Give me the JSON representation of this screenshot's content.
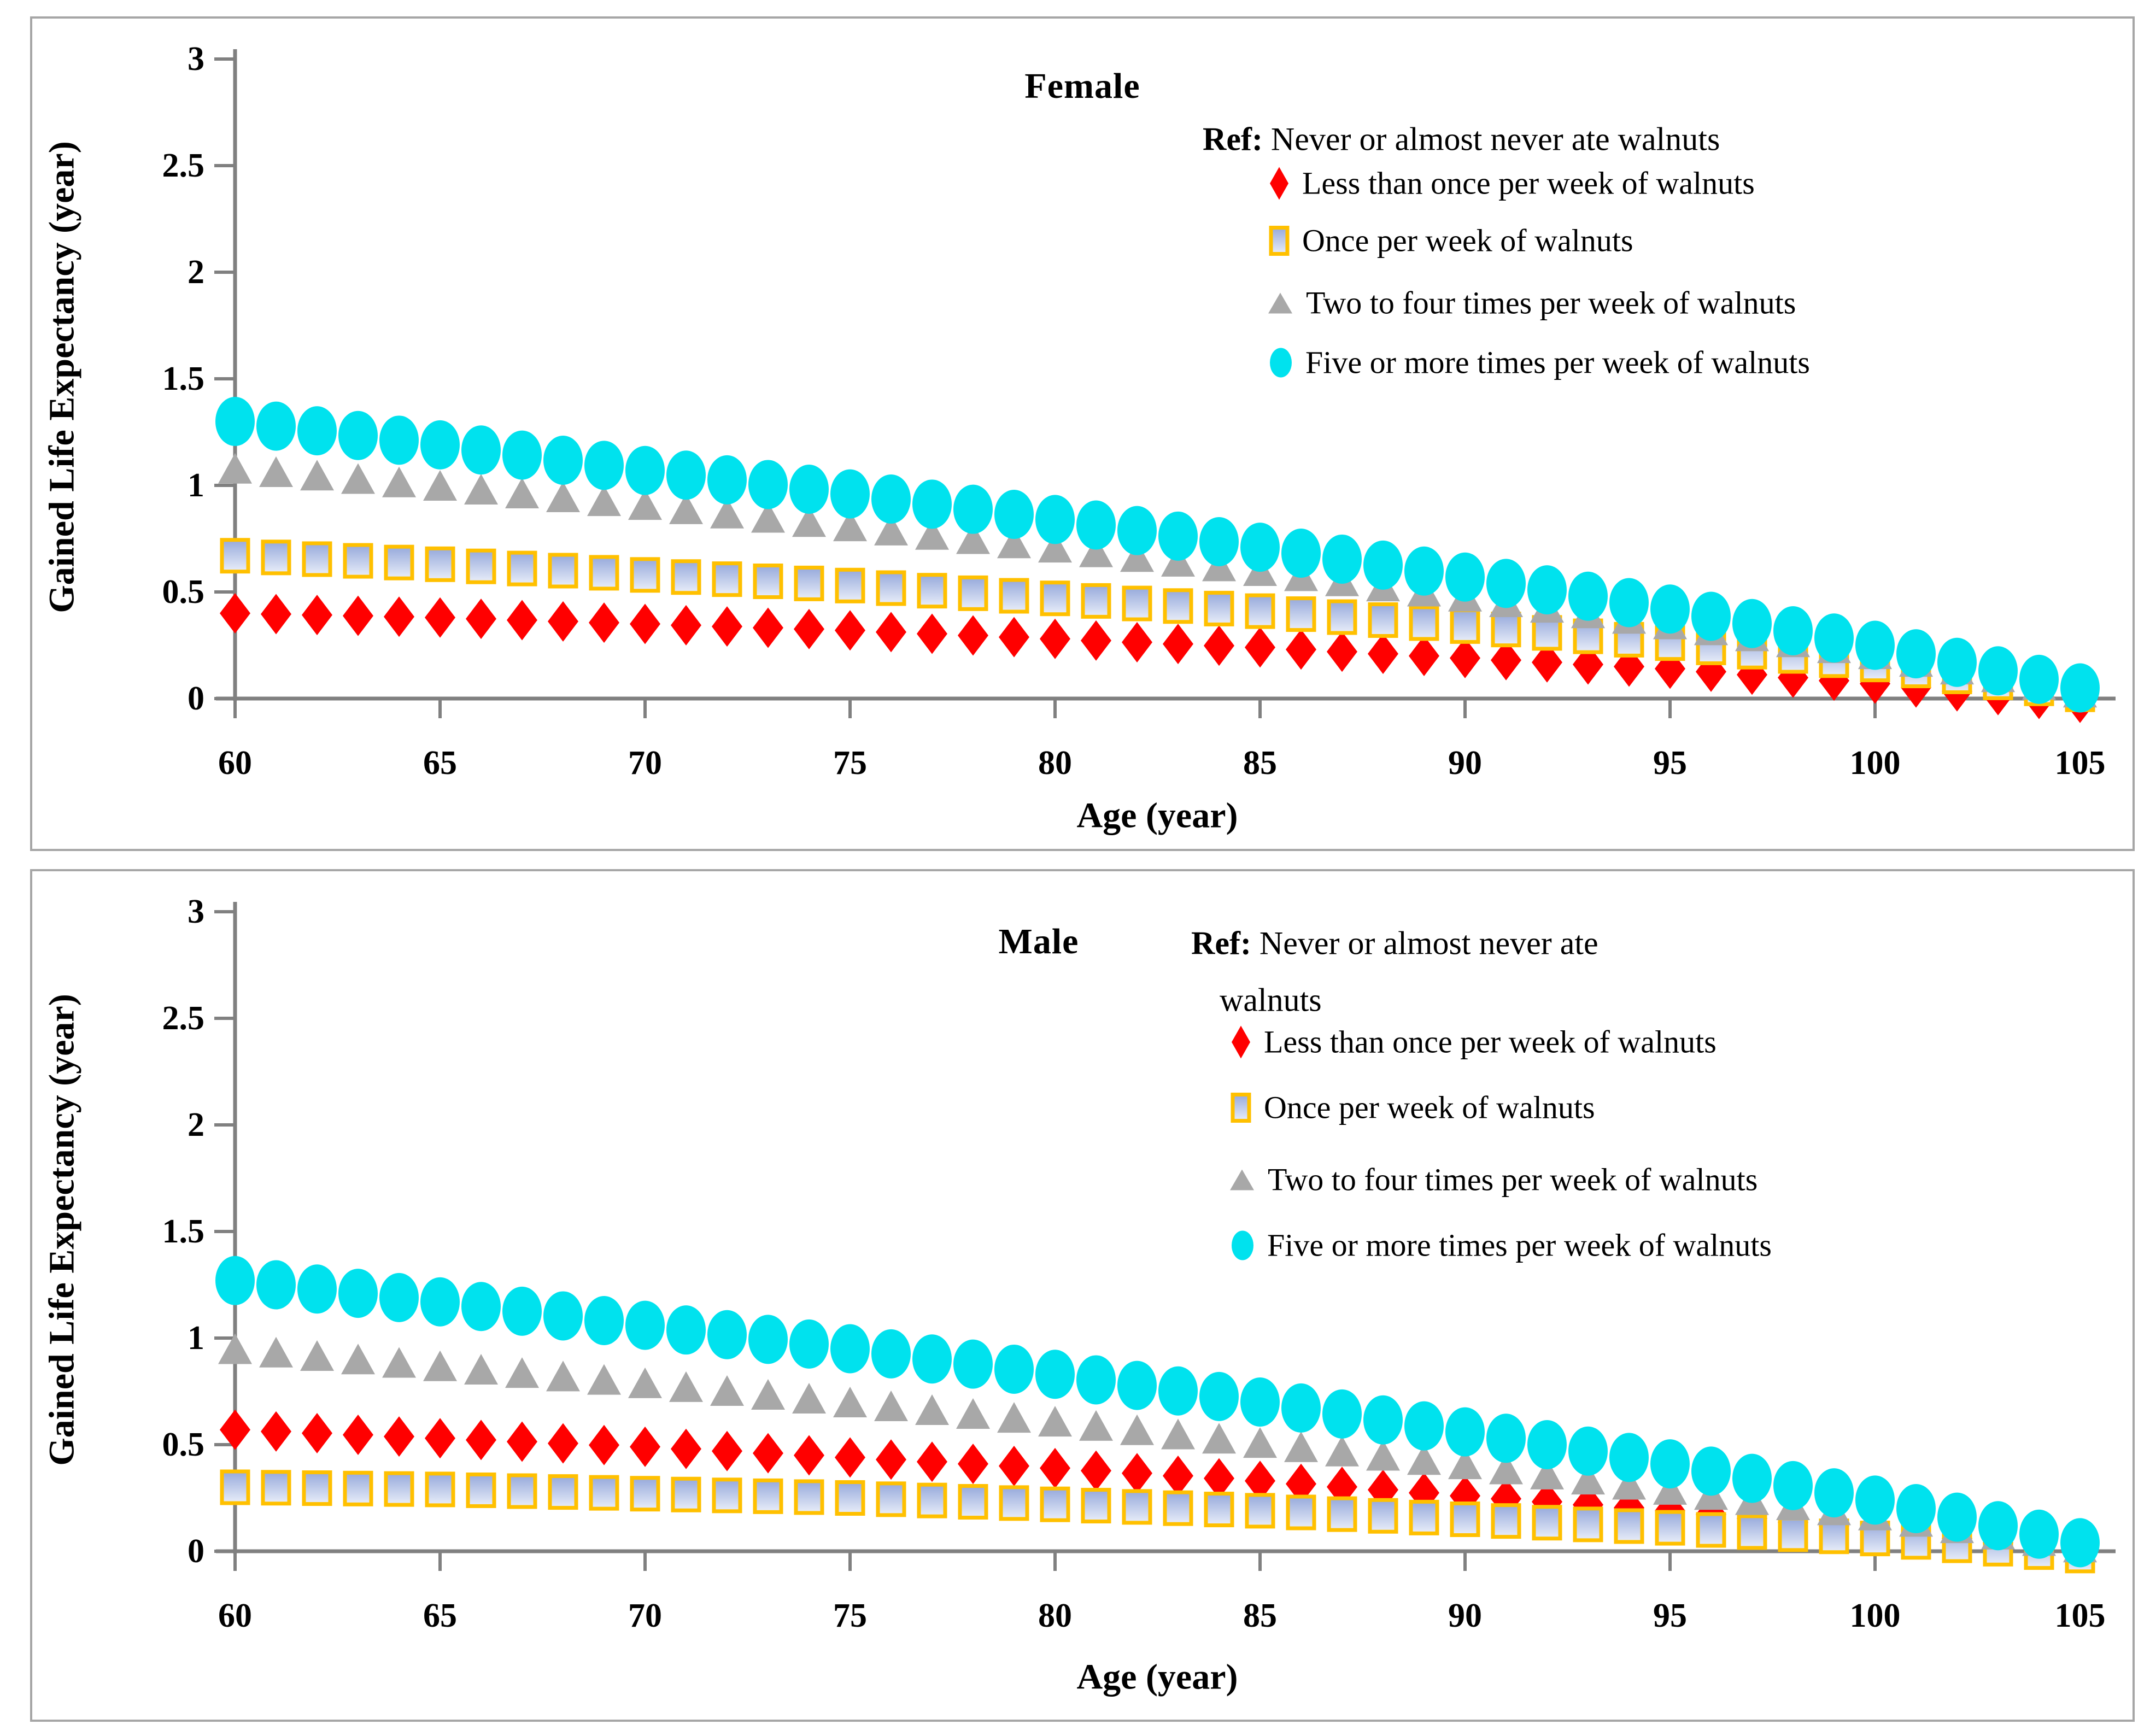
{
  "chart_data": [
    {
      "type": "scatter",
      "panel": "female",
      "title": "Female",
      "xlabel": "Age (year)",
      "ylabel": "Gained Life Expectancy (year)",
      "xlim": [
        60,
        105
      ],
      "ylim": [
        0,
        3
      ],
      "grid": false,
      "x_tick_values": [
        60,
        65,
        70,
        75,
        80,
        85,
        90,
        95,
        100,
        105
      ],
      "x_tick_labels": [
        "60",
        "65",
        "70",
        "75",
        "80",
        "85",
        "90",
        "95",
        "100",
        "105"
      ],
      "y_tick_values": [
        0,
        0.5,
        1,
        1.5,
        2,
        2.5,
        3
      ],
      "y_tick_labels": [
        "0",
        "0.5",
        "1",
        "1.5",
        "2",
        "2.5",
        "3"
      ],
      "legend": {
        "position": "top-right-inside",
        "ref_bold": "Ref:",
        "ref_rest": " Never or almost never ate walnuts",
        "items": [
          {
            "marker": "diamond",
            "color": "#FF0000",
            "label": "Less than once per week of walnuts"
          },
          {
            "marker": "square",
            "color": "#FFC000",
            "label": "Once per week of walnuts"
          },
          {
            "marker": "triangle",
            "color": "#A8A8A8",
            "label": "Two to four times per week of walnuts"
          },
          {
            "marker": "circle",
            "color": "#00E2EE",
            "label": "Five or more times per week of walnuts"
          }
        ]
      },
      "ages": [
        60,
        61,
        62,
        63,
        64,
        65,
        66,
        67,
        68,
        69,
        70,
        71,
        72,
        73,
        74,
        75,
        76,
        77,
        78,
        79,
        80,
        81,
        82,
        83,
        84,
        85,
        86,
        87,
        88,
        89,
        90,
        91,
        92,
        93,
        94,
        95,
        96,
        97,
        98,
        99,
        100,
        101,
        102,
        103,
        104,
        105
      ],
      "series": [
        {
          "id": "less-than-once",
          "name": "Less than once per week of walnuts",
          "marker": "diamond",
          "color": "#FF0000",
          "values": [
            0.4,
            0.396,
            0.392,
            0.388,
            0.384,
            0.38,
            0.374,
            0.368,
            0.362,
            0.356,
            0.35,
            0.344,
            0.338,
            0.332,
            0.326,
            0.32,
            0.312,
            0.304,
            0.296,
            0.288,
            0.28,
            0.272,
            0.264,
            0.256,
            0.248,
            0.24,
            0.23,
            0.22,
            0.21,
            0.2,
            0.19,
            0.18,
            0.17,
            0.16,
            0.15,
            0.14,
            0.126,
            0.112,
            0.098,
            0.084,
            0.07,
            0.052,
            0.034,
            0.016,
            -0.002,
            -0.02
          ]
        },
        {
          "id": "once-per-week",
          "name": "Once per week of walnuts",
          "marker": "square",
          "color": "#FFC000",
          "values": [
            0.67,
            0.662,
            0.654,
            0.646,
            0.638,
            0.63,
            0.62,
            0.61,
            0.6,
            0.59,
            0.58,
            0.57,
            0.56,
            0.55,
            0.54,
            0.53,
            0.518,
            0.506,
            0.494,
            0.482,
            0.47,
            0.458,
            0.446,
            0.434,
            0.422,
            0.41,
            0.396,
            0.382,
            0.368,
            0.354,
            0.34,
            0.324,
            0.308,
            0.292,
            0.276,
            0.26,
            0.24,
            0.22,
            0.2,
            0.18,
            0.16,
            0.132,
            0.104,
            0.076,
            0.048,
            0.02
          ]
        },
        {
          "id": "two-to-four",
          "name": "Two to four times per week of walnuts",
          "marker": "triangle",
          "color": "#A8A8A8",
          "values": [
            1.08,
            1.064,
            1.048,
            1.032,
            1.016,
            1.0,
            0.982,
            0.964,
            0.946,
            0.928,
            0.91,
            0.89,
            0.87,
            0.85,
            0.83,
            0.81,
            0.79,
            0.77,
            0.75,
            0.73,
            0.71,
            0.688,
            0.666,
            0.644,
            0.622,
            0.6,
            0.576,
            0.552,
            0.528,
            0.504,
            0.48,
            0.454,
            0.428,
            0.402,
            0.376,
            0.35,
            0.322,
            0.294,
            0.266,
            0.238,
            0.21,
            0.174,
            0.138,
            0.102,
            0.066,
            0.03
          ]
        },
        {
          "id": "five-or-more",
          "name": "Five or more times per week of walnuts",
          "marker": "circle",
          "color": "#00E2EE",
          "values": [
            1.3,
            1.278,
            1.256,
            1.234,
            1.212,
            1.19,
            1.166,
            1.142,
            1.118,
            1.094,
            1.07,
            1.048,
            1.026,
            1.004,
            0.982,
            0.96,
            0.936,
            0.912,
            0.888,
            0.864,
            0.84,
            0.814,
            0.788,
            0.762,
            0.736,
            0.71,
            0.682,
            0.654,
            0.626,
            0.598,
            0.57,
            0.54,
            0.51,
            0.48,
            0.45,
            0.42,
            0.386,
            0.352,
            0.318,
            0.284,
            0.25,
            0.21,
            0.17,
            0.13,
            0.09,
            0.05
          ]
        }
      ]
    },
    {
      "type": "scatter",
      "panel": "male",
      "title": "Male",
      "xlabel": "Age (year)",
      "ylabel": "Gained Life Expectancy (year)",
      "xlim": [
        60,
        105
      ],
      "ylim": [
        0,
        3
      ],
      "grid": false,
      "x_tick_values": [
        60,
        65,
        70,
        75,
        80,
        85,
        90,
        95,
        100,
        105
      ],
      "x_tick_labels": [
        "60",
        "65",
        "70",
        "75",
        "80",
        "85",
        "90",
        "95",
        "100",
        "105"
      ],
      "y_tick_values": [
        0,
        0.5,
        1,
        1.5,
        2,
        2.5,
        3
      ],
      "y_tick_labels": [
        "0",
        "0.5",
        "1",
        "1.5",
        "2",
        "2.5",
        "3"
      ],
      "legend": {
        "position": "top-right-inside",
        "ref_bold": "Ref:",
        "ref_rest": " Never or almost never ate",
        "ref_line2": "walnuts",
        "items": [
          {
            "marker": "diamond",
            "color": "#FF0000",
            "label": "Less than once per week of walnuts"
          },
          {
            "marker": "square",
            "color": "#FFC000",
            "label": "Once per week of walnuts"
          },
          {
            "marker": "triangle",
            "color": "#A8A8A8",
            "label": "Two to four times per week of walnuts"
          },
          {
            "marker": "circle",
            "color": "#00E2EE",
            "label": "Five or more times per week of walnuts"
          }
        ]
      },
      "ages": [
        60,
        61,
        62,
        63,
        64,
        65,
        66,
        67,
        68,
        69,
        70,
        71,
        72,
        73,
        74,
        75,
        76,
        77,
        78,
        79,
        80,
        81,
        82,
        83,
        84,
        85,
        86,
        87,
        88,
        89,
        90,
        91,
        92,
        93,
        94,
        95,
        96,
        97,
        98,
        99,
        100,
        101,
        102,
        103,
        104,
        105
      ],
      "series": [
        {
          "id": "less-than-once",
          "name": "Less than once per week of walnuts",
          "marker": "diamond",
          "color": "#FF0000",
          "values": [
            0.57,
            0.562,
            0.554,
            0.546,
            0.538,
            0.53,
            0.522,
            0.514,
            0.506,
            0.498,
            0.49,
            0.48,
            0.47,
            0.46,
            0.45,
            0.44,
            0.43,
            0.42,
            0.41,
            0.4,
            0.39,
            0.378,
            0.366,
            0.354,
            0.342,
            0.33,
            0.316,
            0.302,
            0.288,
            0.274,
            0.26,
            0.246,
            0.232,
            0.218,
            0.204,
            0.19,
            0.172,
            0.154,
            0.136,
            0.118,
            0.1,
            0.08,
            0.06,
            0.04,
            0.02,
            0.0
          ]
        },
        {
          "id": "once-per-week",
          "name": "Once per week of walnuts",
          "marker": "square",
          "color": "#FFC000",
          "values": [
            0.3,
            0.298,
            0.296,
            0.294,
            0.292,
            0.29,
            0.286,
            0.282,
            0.278,
            0.274,
            0.27,
            0.266,
            0.262,
            0.258,
            0.254,
            0.25,
            0.244,
            0.238,
            0.232,
            0.226,
            0.22,
            0.214,
            0.208,
            0.202,
            0.196,
            0.19,
            0.182,
            0.174,
            0.166,
            0.158,
            0.15,
            0.142,
            0.134,
            0.126,
            0.118,
            0.11,
            0.1,
            0.09,
            0.08,
            0.07,
            0.06,
            0.044,
            0.028,
            0.012,
            -0.004,
            -0.02
          ]
        },
        {
          "id": "two-to-four",
          "name": "Two to four times per week of walnuts",
          "marker": "triangle",
          "color": "#A8A8A8",
          "values": [
            0.95,
            0.934,
            0.918,
            0.902,
            0.886,
            0.87,
            0.854,
            0.838,
            0.822,
            0.806,
            0.79,
            0.772,
            0.754,
            0.736,
            0.718,
            0.7,
            0.682,
            0.664,
            0.646,
            0.628,
            0.61,
            0.59,
            0.57,
            0.55,
            0.53,
            0.51,
            0.49,
            0.47,
            0.45,
            0.43,
            0.41,
            0.386,
            0.362,
            0.338,
            0.314,
            0.29,
            0.266,
            0.242,
            0.218,
            0.194,
            0.17,
            0.14,
            0.11,
            0.08,
            0.05,
            0.02
          ]
        },
        {
          "id": "five-or-more",
          "name": "Five or more times per week of walnuts",
          "marker": "circle",
          "color": "#00E2EE",
          "values": [
            1.27,
            1.25,
            1.23,
            1.21,
            1.19,
            1.17,
            1.148,
            1.126,
            1.104,
            1.082,
            1.06,
            1.038,
            1.016,
            0.994,
            0.972,
            0.95,
            0.926,
            0.902,
            0.878,
            0.854,
            0.83,
            0.804,
            0.778,
            0.752,
            0.726,
            0.7,
            0.672,
            0.644,
            0.616,
            0.588,
            0.56,
            0.53,
            0.5,
            0.47,
            0.44,
            0.41,
            0.376,
            0.342,
            0.308,
            0.274,
            0.24,
            0.2,
            0.16,
            0.12,
            0.08,
            0.04
          ]
        }
      ]
    }
  ],
  "style": {
    "axis_color": "#808080",
    "panel_border_color": "#A6A6A6",
    "text_color": "#000000",
    "square_gradient_top": "#96A9DB",
    "square_gradient_bottom": "#E9EEF9",
    "gold": "#FFC000",
    "red": "#FF0000",
    "gray": "#A8A8A8",
    "cyan": "#00E2EE"
  }
}
